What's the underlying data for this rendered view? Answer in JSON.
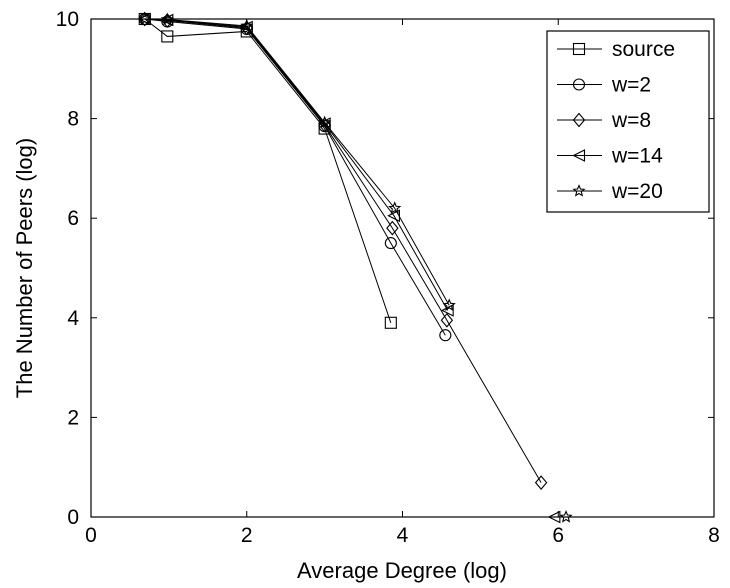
{
  "chart_data": {
    "type": "line",
    "xlabel": "Average Degree (log)",
    "ylabel": "The Number of Peers (log)",
    "xlim": [
      0,
      8
    ],
    "ylim": [
      0,
      10
    ],
    "xticks": [
      "0",
      "2",
      "4",
      "6",
      "8"
    ],
    "yticks": [
      "0",
      "2",
      "4",
      "6",
      "8",
      "10"
    ],
    "grid": false,
    "legend_position": "top-right",
    "series": [
      {
        "name": "source",
        "marker": "square",
        "x": [
          0.69,
          0.98,
          2.0,
          3.0,
          3.85
        ],
        "y": [
          10.0,
          9.65,
          9.75,
          7.8,
          3.9
        ]
      },
      {
        "name": "w=2",
        "marker": "circle",
        "x": [
          0.69,
          0.98,
          2.0,
          3.0,
          3.85,
          4.55
        ],
        "y": [
          10.0,
          9.95,
          9.8,
          7.85,
          5.5,
          3.65
        ]
      },
      {
        "name": "w=8",
        "marker": "diamond",
        "x": [
          0.69,
          0.98,
          2.0,
          3.0,
          3.87,
          4.57,
          5.78
        ],
        "y": [
          10.0,
          9.97,
          9.82,
          7.87,
          5.8,
          3.95,
          0.69
        ]
      },
      {
        "name": "w=14",
        "marker": "triangle-left",
        "x": [
          0.69,
          0.98,
          2.0,
          3.0,
          3.89,
          4.58,
          5.95
        ],
        "y": [
          10.0,
          9.98,
          9.84,
          7.9,
          6.05,
          4.15,
          0.0
        ]
      },
      {
        "name": "w=20",
        "marker": "star",
        "x": [
          0.69,
          0.98,
          2.0,
          3.0,
          3.9,
          4.6,
          6.1
        ],
        "y": [
          10.0,
          9.99,
          9.86,
          7.92,
          6.2,
          4.25,
          0.0
        ]
      }
    ]
  }
}
